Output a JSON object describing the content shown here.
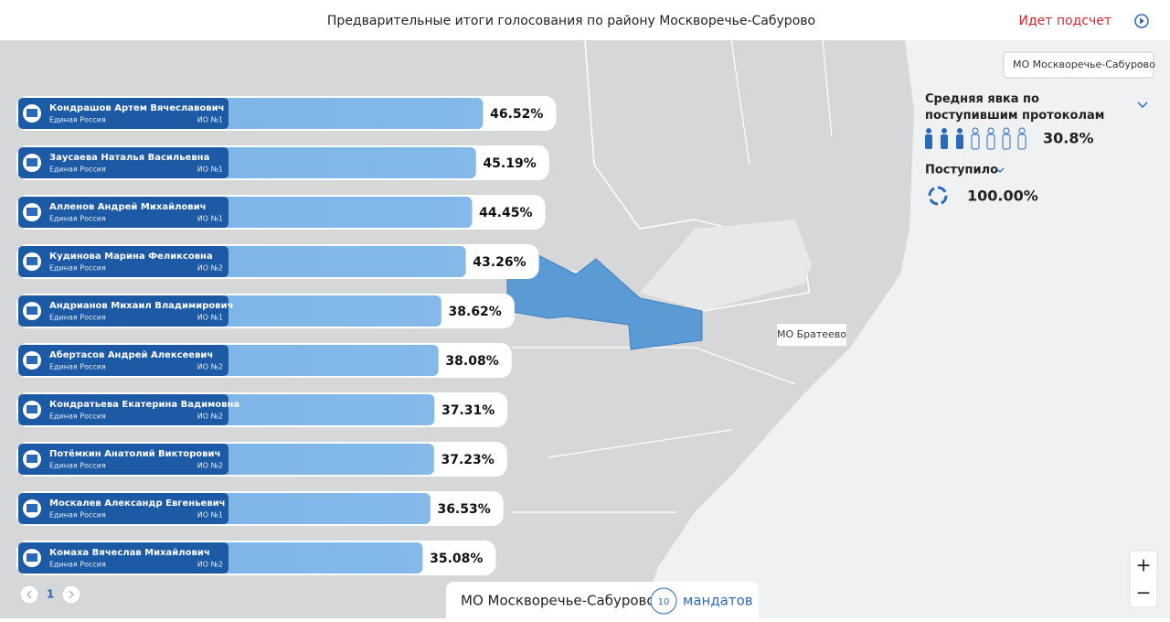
{
  "header": {
    "title": "Предварительные итоги голосования по району Москворечье-Сабурово",
    "status": "Идет подсчет"
  },
  "district_select": "МО Москворечье-Сабурово",
  "turnout": {
    "label": "Средняя явка по поступившим протоколам",
    "value": "30.8%"
  },
  "received": {
    "label": "Поступило",
    "value": "100.00%"
  },
  "map_label": "МО Братеево",
  "candidates": [
    {
      "name": "Кондрашов Артем Вячеславович",
      "party": "Единая Россия",
      "district": "ИО №1",
      "percent": 46.52,
      "percent_label": "46.52%"
    },
    {
      "name": "Заусаева Наталья Васильевна",
      "party": "Единая Россия",
      "district": "ИО №1",
      "percent": 45.19,
      "percent_label": "45.19%"
    },
    {
      "name": "Алленов Андрей Михайлович",
      "party": "Единая Россия",
      "district": "ИО №1",
      "percent": 44.45,
      "percent_label": "44.45%"
    },
    {
      "name": "Кудинова Марина Феликсовна",
      "party": "Единая Россия",
      "district": "ИО №2",
      "percent": 43.26,
      "percent_label": "43.26%"
    },
    {
      "name": "Андрианов Михаил Владимирович",
      "party": "Единая Россия",
      "district": "ИО №1",
      "percent": 38.62,
      "percent_label": "38.62%"
    },
    {
      "name": "Абертасов Андрей Алексеевич",
      "party": "Единая Россия",
      "district": "ИО №2",
      "percent": 38.08,
      "percent_label": "38.08%"
    },
    {
      "name": "Кондратьева Екатерина Вадимовна",
      "party": "Единая Россия",
      "district": "ИО №2",
      "percent": 37.31,
      "percent_label": "37.31%"
    },
    {
      "name": "Потёмкин Анатолий Викторович",
      "party": "Единая Россия",
      "district": "ИО №2",
      "percent": 37.23,
      "percent_label": "37.23%"
    },
    {
      "name": "Москалев Александр Евгеньевич",
      "party": "Единая Россия",
      "district": "ИО №1",
      "percent": 36.53,
      "percent_label": "36.53%"
    },
    {
      "name": "Комаха Вячеслав Михайлович",
      "party": "Единая Россия",
      "district": "ИО №2",
      "percent": 35.08,
      "percent_label": "35.08%"
    }
  ],
  "pagination": {
    "page": "1"
  },
  "footer": {
    "district": "МО Москворечье-Сабурово",
    "mandates": "10",
    "mandates_label": "мандатов"
  },
  "zoom": {
    "in": "+",
    "out": "−"
  }
}
